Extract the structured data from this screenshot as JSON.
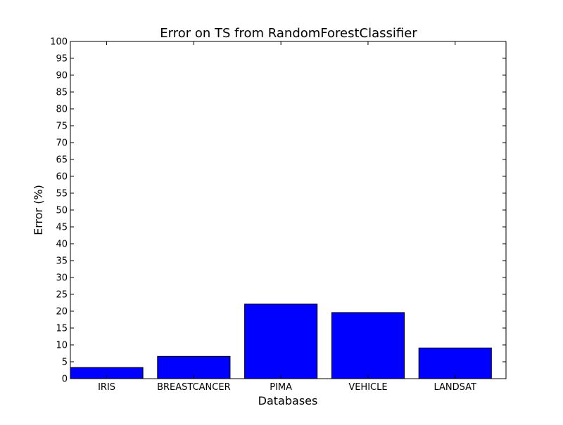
{
  "chart_data": {
    "type": "bar",
    "title": "Error on TS from RandomForestClassifier",
    "xlabel": "Databases",
    "ylabel": "Error (%)",
    "categories": [
      "IRIS",
      "BREASTCANCER",
      "PIMA",
      "VEHICLE",
      "LANDSAT"
    ],
    "values": [
      3.3,
      6.6,
      22.1,
      19.6,
      9.1
    ],
    "ylim": [
      0,
      100
    ],
    "yticks": [
      0,
      5,
      10,
      15,
      20,
      25,
      30,
      35,
      40,
      45,
      50,
      55,
      60,
      65,
      70,
      75,
      80,
      85,
      90,
      95,
      100
    ],
    "bar_color": "#0000ff",
    "grid": false,
    "legend": "none"
  }
}
